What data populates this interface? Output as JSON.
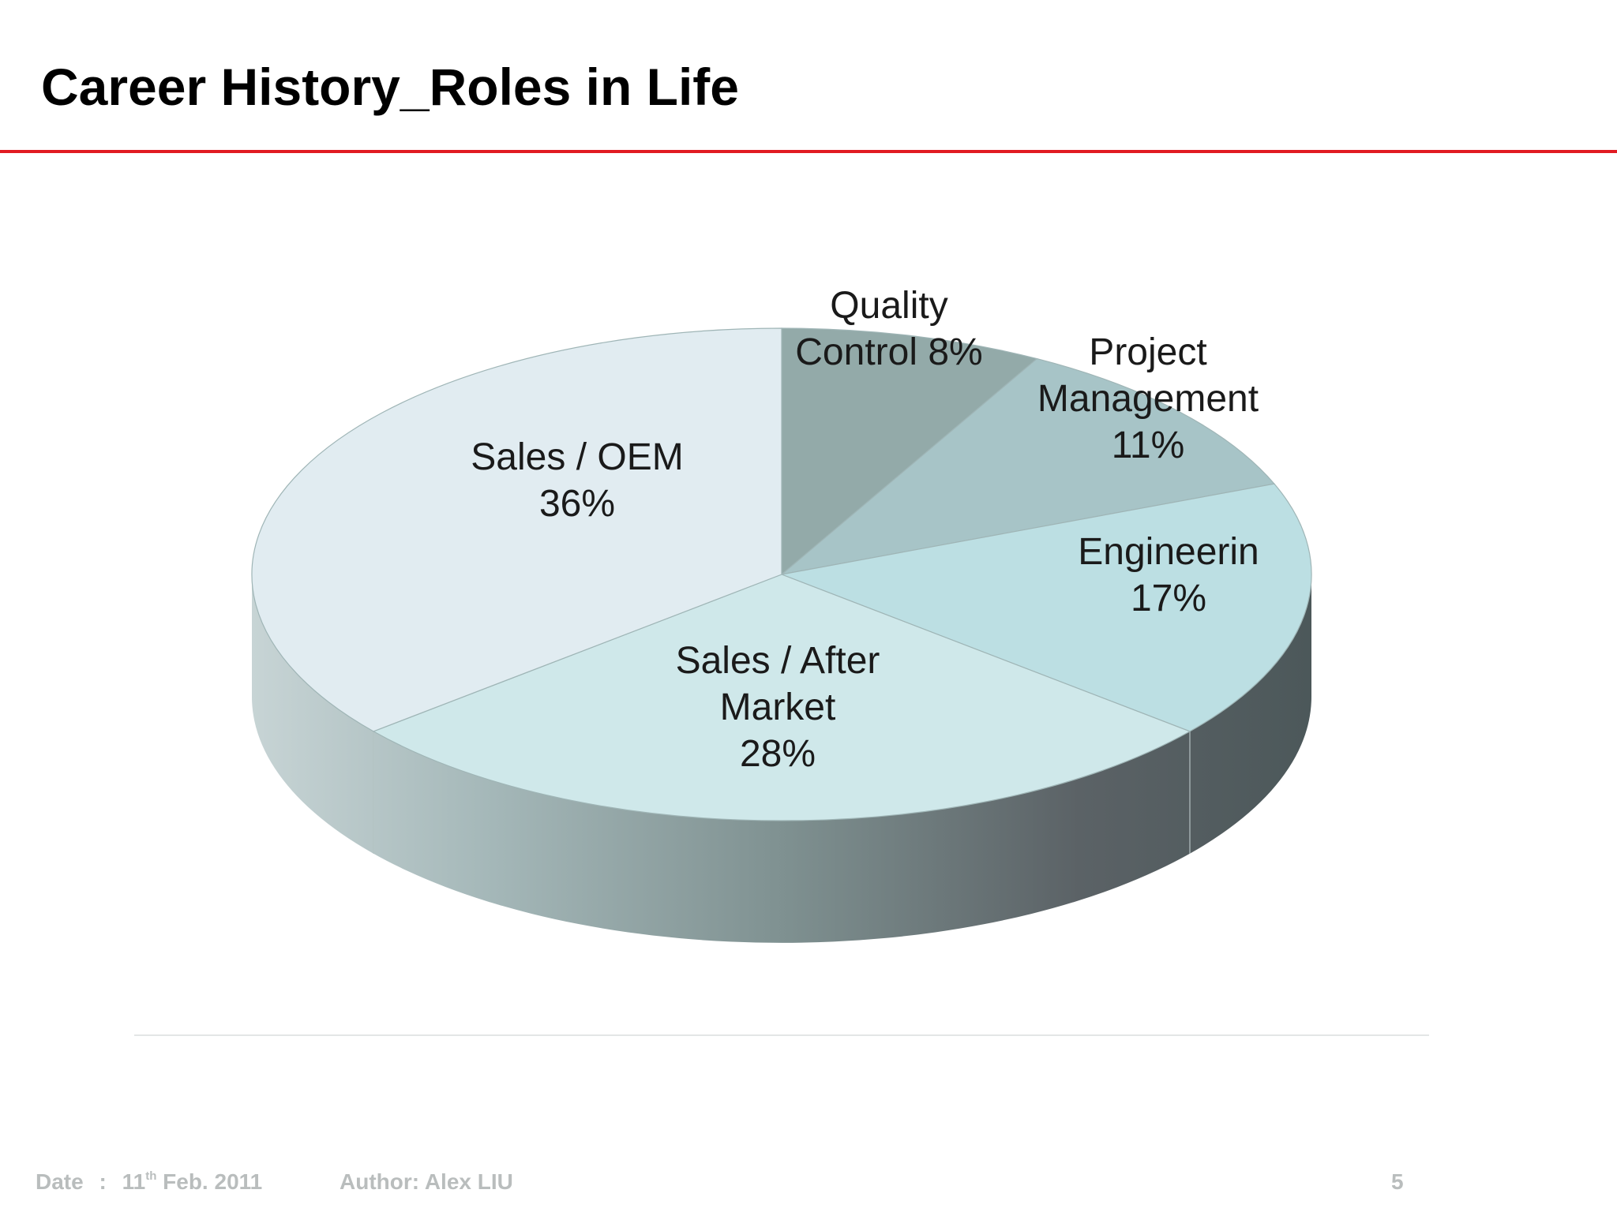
{
  "slide": {
    "title": "Career History_Roles in Life",
    "page_number": "5"
  },
  "footer": {
    "date_label": "Date",
    "date_separator": ":",
    "date_day": "11",
    "date_suffix": "th",
    "date_rest": "Feb. 2011",
    "author": "Author: Alex LIU"
  },
  "colors": {
    "title_rule": "#e11b22",
    "slices": {
      "Quality Control": "#93aaa9",
      "Project Management": "#a7c4c7",
      "Engineerin": "#bcdfe3",
      "Sales / After Market": "#cfe8ea",
      "Sales / OEM": "#e1ecf1"
    }
  },
  "chart_data": {
    "type": "pie",
    "style": "3d",
    "title": "",
    "categories": [
      "Quality Control",
      "Project Management",
      "Engineerin",
      "Sales / After Market",
      "Sales / OEM"
    ],
    "values": [
      8,
      11,
      17,
      28,
      36
    ],
    "unit": "%",
    "data_labels": [
      [
        "Quality",
        "Control 8%"
      ],
      [
        "Project",
        "Management",
        "11%"
      ],
      [
        "Engineerin",
        "17%"
      ],
      [
        "Sales / After",
        "Market",
        "28%"
      ],
      [
        "Sales / OEM",
        "36%"
      ]
    ],
    "legend": "none"
  }
}
